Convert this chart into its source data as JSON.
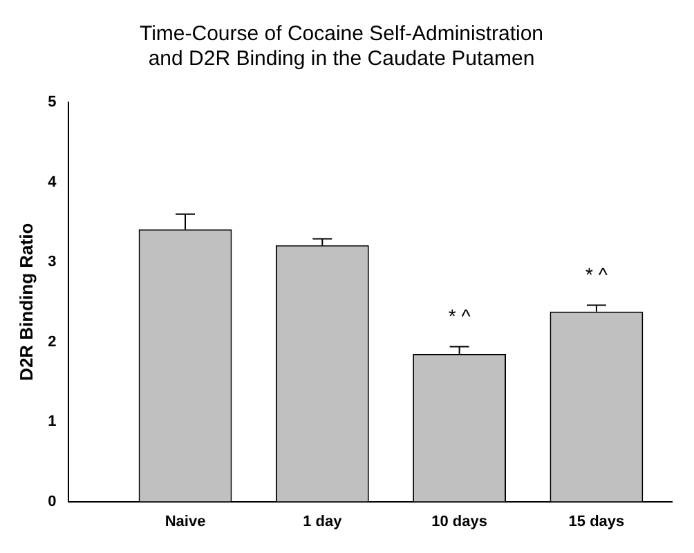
{
  "chart_data": {
    "type": "bar",
    "title": "Time-Course of Cocaine Self-Administration\nand D2R Binding in the Caudate Putamen",
    "ylabel": "D2R Binding Ratio",
    "categories": [
      "Naive",
      "1 day",
      "10 days",
      "15 days"
    ],
    "values": [
      3.41,
      3.21,
      1.85,
      2.38
    ],
    "errors": [
      0.19,
      0.08,
      0.09,
      0.08
    ],
    "color": "#c0c0c0",
    "ylim": [
      0,
      5
    ],
    "yticks": [
      0,
      1,
      2,
      3,
      4,
      5
    ],
    "grid": false,
    "legend": false,
    "annotations": [
      {
        "text": "* ^",
        "x": "10 days",
        "y": 1.94
      },
      {
        "text": "* ^",
        "x": "15 days",
        "y": 2.46
      }
    ]
  }
}
